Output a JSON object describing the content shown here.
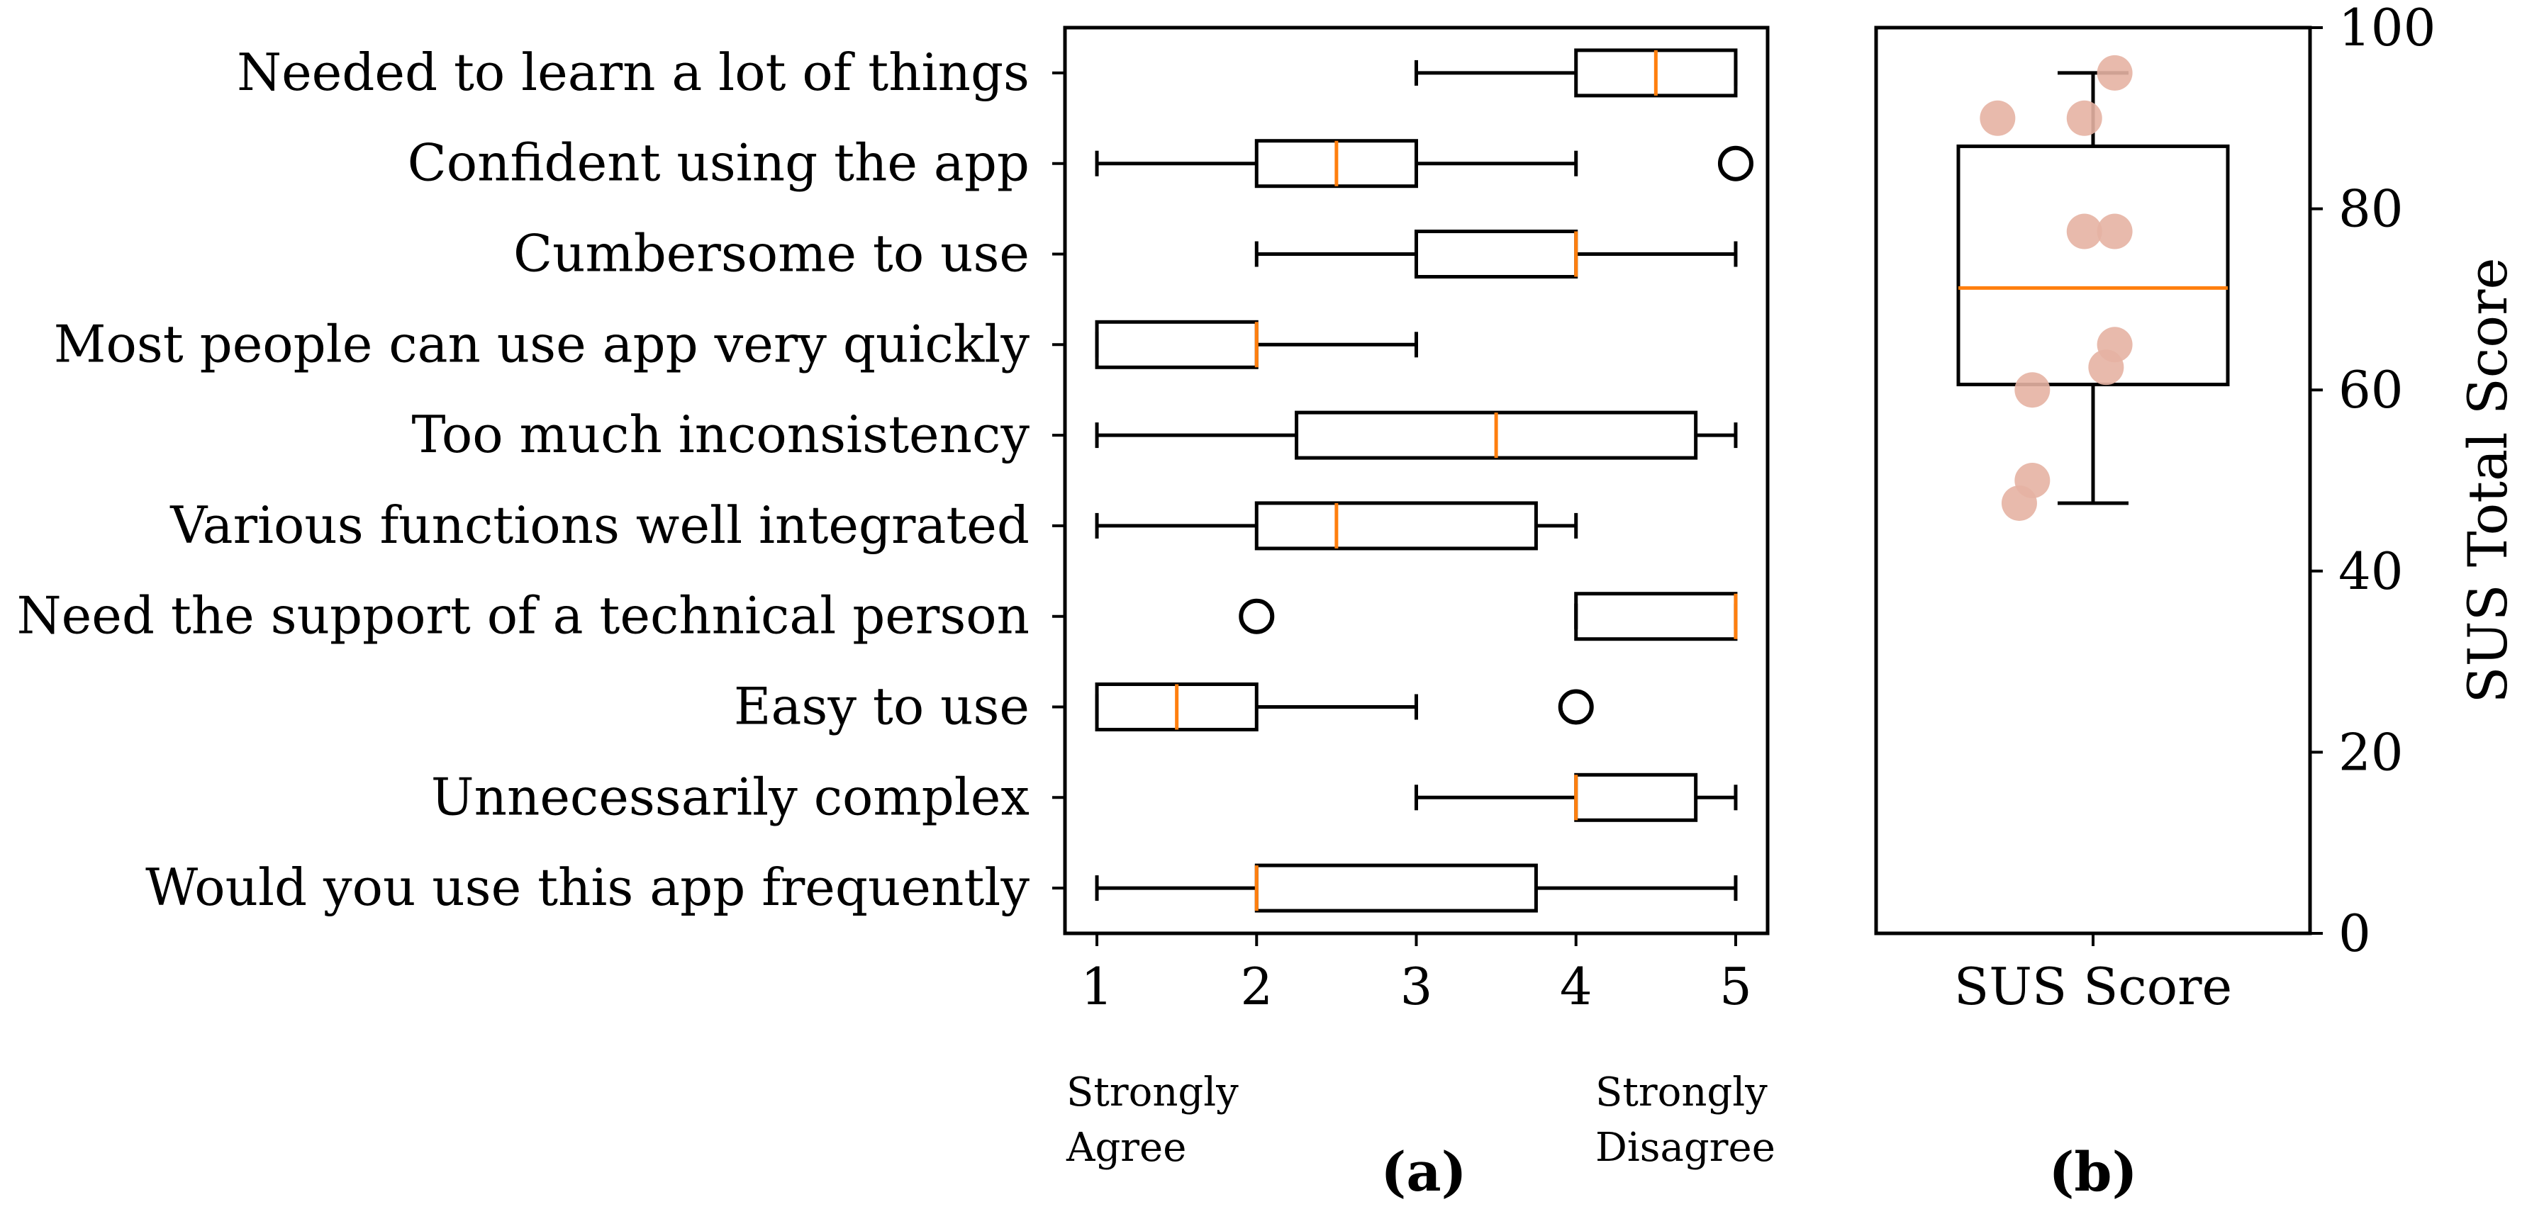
{
  "colors": {
    "box_stroke": "#000000",
    "median": "#ff7f0e",
    "points": "#e6b3a3",
    "background": "#ffffff"
  },
  "chart_data": [
    {
      "type": "boxplot",
      "panel_label": "(a)",
      "orientation": "horizontal",
      "categories": [
        "Needed to learn a lot of things",
        "Confident using the app",
        "Cumbersome to use",
        "Most people can use app very quickly",
        "Too much inconsistency",
        "Various functions well integrated",
        "Need the support of a technical person",
        "Easy to use",
        "Unnecessarily complex",
        "Would you use this app frequently"
      ],
      "boxes": [
        {
          "whislo": 3,
          "q1": 4,
          "med": 4.5,
          "q3": 5,
          "whishi": 5,
          "fliers": []
        },
        {
          "whislo": 1,
          "q1": 2,
          "med": 2.5,
          "q3": 3,
          "whishi": 4,
          "fliers": [
            5
          ]
        },
        {
          "whislo": 2,
          "q1": 3,
          "med": 4,
          "q3": 4,
          "whishi": 5,
          "fliers": []
        },
        {
          "whislo": 1,
          "q1": 1,
          "med": 2,
          "q3": 2,
          "whishi": 3,
          "fliers": []
        },
        {
          "whislo": 1,
          "q1": 2.25,
          "med": 3.5,
          "q3": 4.75,
          "whishi": 5,
          "fliers": []
        },
        {
          "whislo": 1,
          "q1": 2,
          "med": 2.5,
          "q3": 3.75,
          "whishi": 4,
          "fliers": []
        },
        {
          "whislo": 4,
          "q1": 4,
          "med": 5,
          "q3": 5,
          "whishi": 5,
          "fliers": [
            2
          ]
        },
        {
          "whislo": 1,
          "q1": 1,
          "med": 1.5,
          "q3": 2,
          "whishi": 3,
          "fliers": [
            4
          ]
        },
        {
          "whislo": 3,
          "q1": 4,
          "med": 4,
          "q3": 4.75,
          "whishi": 5,
          "fliers": []
        },
        {
          "whislo": 1,
          "q1": 2,
          "med": 2,
          "q3": 3.75,
          "whishi": 5,
          "fliers": []
        }
      ],
      "x_ticks": [
        "1",
        "2",
        "3",
        "4",
        "5"
      ],
      "xlim": [
        0.8,
        5.2
      ],
      "x_anchor_left": [
        "Strongly",
        "Agree"
      ],
      "x_anchor_right": [
        "Strongly",
        "Disagree"
      ]
    },
    {
      "type": "boxplot",
      "panel_label": "(b)",
      "orientation": "vertical",
      "categories": [
        "SUS Score"
      ],
      "ylabel": "SUS Total Score",
      "ylim": [
        0,
        100
      ],
      "y_ticks": [
        "0",
        "20",
        "40",
        "60",
        "80",
        "100"
      ],
      "box": {
        "whislo": 47.5,
        "q1": 60.6,
        "med": 71.25,
        "q3": 86.9,
        "whishi": 95
      },
      "points": [
        {
          "x": 1.05,
          "y": 95
        },
        {
          "x": 0.78,
          "y": 90
        },
        {
          "x": 0.98,
          "y": 90
        },
        {
          "x": 0.98,
          "y": 77.5
        },
        {
          "x": 1.05,
          "y": 77.5
        },
        {
          "x": 1.05,
          "y": 65
        },
        {
          "x": 1.03,
          "y": 62.5
        },
        {
          "x": 0.86,
          "y": 60
        },
        {
          "x": 0.86,
          "y": 50
        },
        {
          "x": 0.83,
          "y": 47.5
        }
      ]
    }
  ]
}
